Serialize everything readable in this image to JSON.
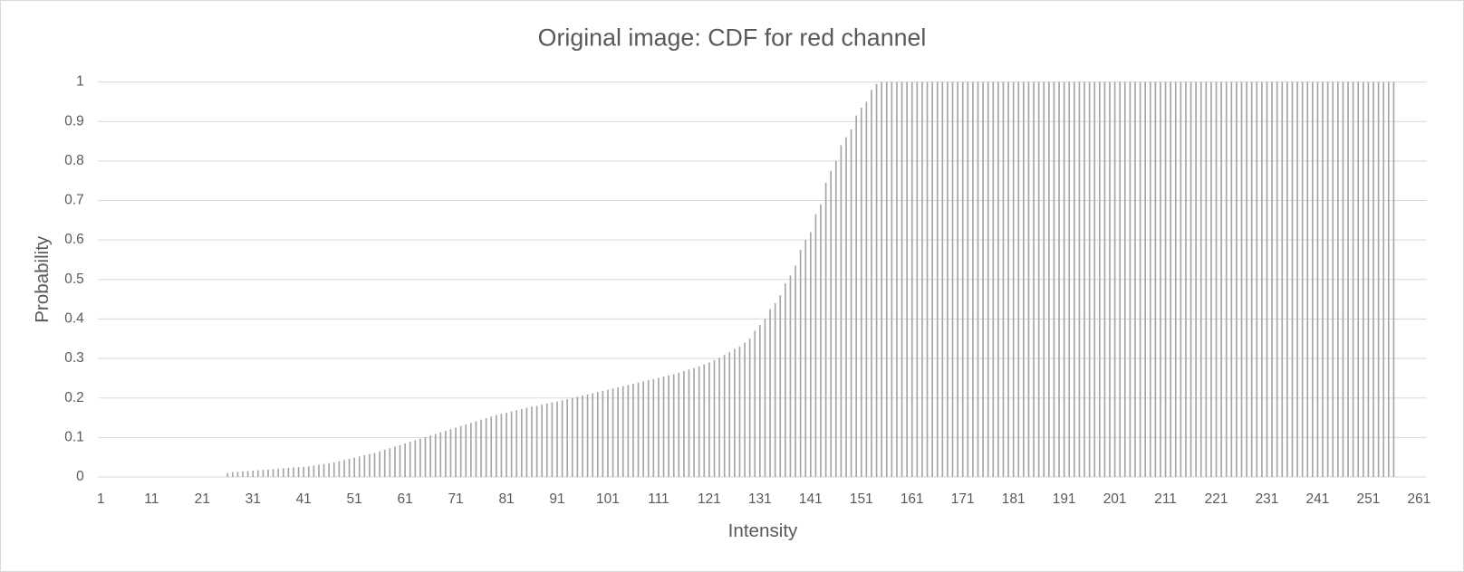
{
  "chart_data": {
    "type": "bar",
    "title": "Original image: CDF for red channel",
    "xlabel": "Intensity",
    "ylabel": "Probability",
    "color": "#a6a6a6",
    "grid": true,
    "xlim": [
      0.5,
      262.5
    ],
    "ylim": [
      0,
      1
    ],
    "xticks": [
      1,
      11,
      21,
      31,
      41,
      51,
      61,
      71,
      81,
      91,
      101,
      111,
      121,
      131,
      141,
      151,
      161,
      171,
      181,
      191,
      201,
      211,
      221,
      231,
      241,
      251,
      261
    ],
    "yticks": [
      0,
      0.1,
      0.2,
      0.3,
      0.4,
      0.5,
      0.6,
      0.7,
      0.8,
      0.9,
      1
    ],
    "x": [
      26,
      27,
      28,
      29,
      30,
      31,
      32,
      33,
      34,
      35,
      36,
      37,
      38,
      39,
      40,
      41,
      42,
      43,
      44,
      45,
      46,
      47,
      48,
      49,
      50,
      51,
      52,
      53,
      54,
      55,
      56,
      57,
      58,
      59,
      60,
      61,
      62,
      63,
      64,
      65,
      66,
      67,
      68,
      69,
      70,
      71,
      72,
      73,
      74,
      75,
      76,
      77,
      78,
      79,
      80,
      81,
      82,
      83,
      84,
      85,
      86,
      87,
      88,
      89,
      90,
      91,
      92,
      93,
      94,
      95,
      96,
      97,
      98,
      99,
      100,
      101,
      102,
      103,
      104,
      105,
      106,
      107,
      108,
      109,
      110,
      111,
      112,
      113,
      114,
      115,
      116,
      117,
      118,
      119,
      120,
      121,
      122,
      123,
      124,
      125,
      126,
      127,
      128,
      129,
      130,
      131,
      132,
      133,
      134,
      135,
      136,
      137,
      138,
      139,
      140,
      141,
      142,
      143,
      144,
      145,
      146,
      147,
      148,
      149,
      150,
      151,
      152,
      153,
      154,
      155,
      156,
      157,
      158,
      159,
      160,
      161,
      162,
      163,
      164,
      165,
      166,
      167,
      168,
      169,
      170,
      171,
      172,
      173,
      174,
      175,
      176,
      177,
      178,
      179,
      180,
      181,
      182,
      183,
      184,
      185,
      186,
      187,
      188,
      189,
      190,
      191,
      192,
      193,
      194,
      195,
      196,
      197,
      198,
      199,
      200,
      201,
      202,
      203,
      204,
      205,
      206,
      207,
      208,
      209,
      210,
      211,
      212,
      213,
      214,
      215,
      216,
      217,
      218,
      219,
      220,
      221,
      222,
      223,
      224,
      225,
      226,
      227,
      228,
      229,
      230,
      231,
      232,
      233,
      234,
      235,
      236,
      237,
      238,
      239,
      240,
      241,
      242,
      243,
      244,
      245,
      246,
      247,
      248,
      249,
      250,
      251,
      252,
      253,
      254,
      255,
      256
    ],
    "values": [
      0.01,
      0.012,
      0.013,
      0.014,
      0.015,
      0.016,
      0.017,
      0.018,
      0.019,
      0.02,
      0.021,
      0.022,
      0.023,
      0.024,
      0.025,
      0.026,
      0.027,
      0.029,
      0.031,
      0.033,
      0.035,
      0.037,
      0.04,
      0.043,
      0.046,
      0.049,
      0.052,
      0.055,
      0.058,
      0.061,
      0.065,
      0.069,
      0.073,
      0.077,
      0.081,
      0.085,
      0.089,
      0.093,
      0.097,
      0.101,
      0.105,
      0.109,
      0.113,
      0.117,
      0.121,
      0.125,
      0.129,
      0.133,
      0.137,
      0.141,
      0.145,
      0.149,
      0.153,
      0.157,
      0.16,
      0.163,
      0.166,
      0.169,
      0.172,
      0.175,
      0.178,
      0.18,
      0.183,
      0.186,
      0.189,
      0.191,
      0.194,
      0.197,
      0.2,
      0.203,
      0.206,
      0.209,
      0.212,
      0.215,
      0.218,
      0.221,
      0.224,
      0.227,
      0.23,
      0.233,
      0.236,
      0.239,
      0.242,
      0.245,
      0.248,
      0.251,
      0.254,
      0.257,
      0.26,
      0.264,
      0.268,
      0.272,
      0.276,
      0.28,
      0.285,
      0.29,
      0.296,
      0.302,
      0.309,
      0.316,
      0.324,
      0.33,
      0.34,
      0.35,
      0.37,
      0.385,
      0.4,
      0.425,
      0.44,
      0.46,
      0.49,
      0.51,
      0.535,
      0.575,
      0.6,
      0.62,
      0.665,
      0.69,
      0.745,
      0.775,
      0.8,
      0.84,
      0.86,
      0.88,
      0.915,
      0.935,
      0.95,
      0.98,
      0.995,
      1,
      1,
      1,
      1,
      1,
      1,
      1,
      1,
      1,
      1,
      1,
      1,
      1,
      1,
      1,
      1,
      1,
      1,
      1,
      1,
      1,
      1,
      1,
      1,
      1,
      1,
      1,
      1,
      1,
      1,
      1,
      1,
      1,
      1,
      1,
      1,
      1,
      1,
      1,
      1,
      1,
      1,
      1,
      1,
      1,
      1,
      1,
      1,
      1,
      1,
      1,
      1,
      1,
      1,
      1,
      1,
      1,
      1,
      1,
      1,
      1,
      1,
      1,
      1,
      1,
      1,
      1,
      1,
      1,
      1,
      1,
      1,
      1,
      1,
      1,
      1,
      1,
      1,
      1,
      1,
      1,
      1,
      1,
      1,
      1,
      1,
      1,
      1,
      1,
      1,
      1,
      1,
      1,
      1,
      1,
      1,
      1,
      1,
      1,
      1,
      1,
      1
    ]
  }
}
